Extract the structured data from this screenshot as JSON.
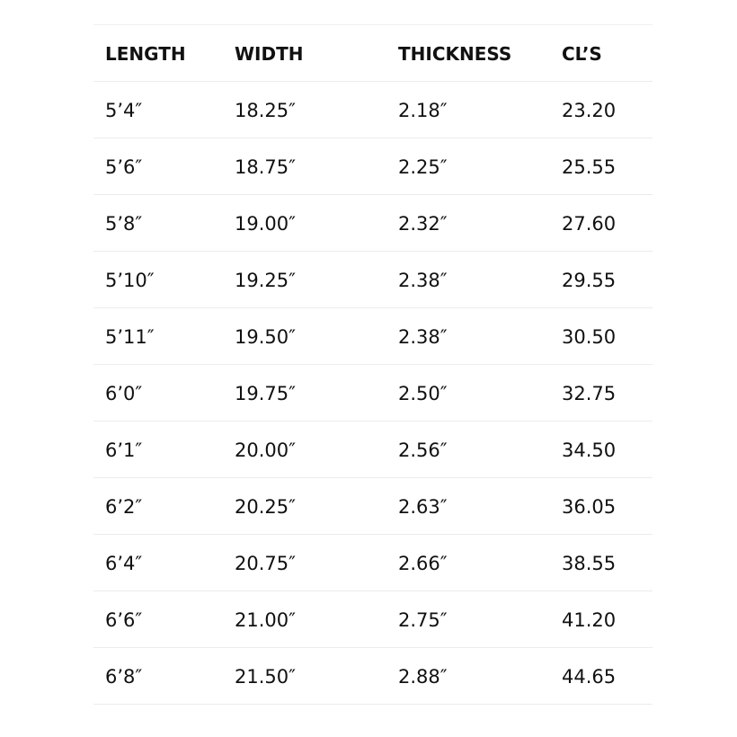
{
  "headers": [
    "LENGTH",
    "WIDTH",
    "THICKNESS",
    "CL’S"
  ],
  "rows": [
    [
      "5’4″",
      "18.25″",
      "2.18″",
      "23.20"
    ],
    [
      "5’6″",
      "18.75″",
      "2.25″",
      "25.55"
    ],
    [
      "5’8″",
      "19.00″",
      "2.32″",
      "27.60"
    ],
    [
      "5’10″",
      "19.25″",
      "2.38″",
      "29.55"
    ],
    [
      "5’11″",
      "19.50″",
      "2.38″",
      "30.50"
    ],
    [
      "6’0″",
      "19.75″",
      "2.50″",
      "32.75"
    ],
    [
      "6’1″",
      "20.00″",
      "2.56″",
      "34.50"
    ],
    [
      "6’2″",
      "20.25″",
      "2.63″",
      "36.05"
    ],
    [
      "6’4″",
      "20.75″",
      "2.66″",
      "38.55"
    ],
    [
      "6’6″",
      "21.00″",
      "2.75″",
      "41.20"
    ],
    [
      "6’8″",
      "21.50″",
      "2.88″",
      "44.65"
    ]
  ]
}
